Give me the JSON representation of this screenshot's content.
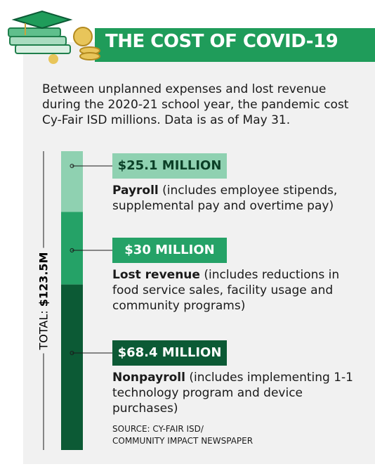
{
  "chart_data": {
    "type": "stacked-bar",
    "title": "THE COST OF COVID-19",
    "subtitle": "Between unplanned expenses and lost revenue during the 2020-21 school year, the pandemic cost Cy-Fair ISD millions. Data is as of May 31.",
    "total_label": "TOTAL:",
    "total": 123.5,
    "total_value_label": "$123.5M",
    "series": [
      {
        "name": "Payroll",
        "description": "(includes employee stipends, supplemental pay and overtime pay)",
        "value": 25.1,
        "value_label": "$25.1 MILLION",
        "color": "#8fd1b1",
        "label_color": "#0b3f27"
      },
      {
        "name": "Lost revenue",
        "description": "(includes reductions in food service sales, facility usage and community programs)",
        "value": 30,
        "value_label": "$30 MILLION",
        "color": "#25a267",
        "label_color": "#ffffff"
      },
      {
        "name": "Nonpayroll",
        "description": "(includes implementing 1-1 technology program and device purchases)",
        "value": 68.4,
        "value_label": "$68.4 MILLION",
        "color": "#0c5a35",
        "label_color": "#ffffff"
      }
    ],
    "source": [
      "SOURCE: CY-FAIR ISD/",
      "COMMUNITY IMPACT NEWSPAPER"
    ]
  }
}
